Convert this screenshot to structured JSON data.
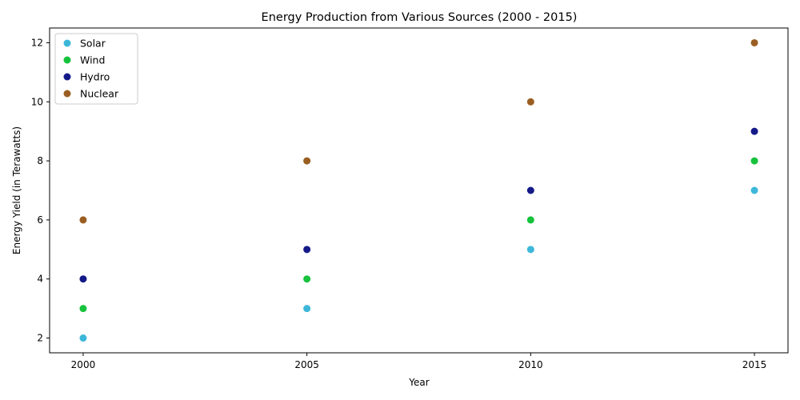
{
  "chart_data": {
    "type": "scatter",
    "title": "Energy Production from Various Sources (2000 - 2015)",
    "xlabel": "Year",
    "ylabel": "Energy Yield (in Terawatts)",
    "x": [
      2000,
      2005,
      2010,
      2015
    ],
    "xticks": [
      "2000",
      "2005",
      "2010",
      "2015"
    ],
    "yticks": [
      "2",
      "4",
      "6",
      "8",
      "10",
      "12"
    ],
    "xlim": [
      1999.25,
      2015.75
    ],
    "ylim": [
      1.5,
      12.5
    ],
    "grid": false,
    "legend_position": "top-left",
    "series": [
      {
        "name": "Solar",
        "color": "#3db7d9",
        "values": [
          2,
          3,
          5,
          7
        ]
      },
      {
        "name": "Wind",
        "color": "#17c23c",
        "values": [
          3,
          4,
          6,
          8
        ]
      },
      {
        "name": "Hydro",
        "color": "#141a88",
        "values": [
          4,
          5,
          7,
          9
        ]
      },
      {
        "name": "Nuclear",
        "color": "#9a5e22",
        "values": [
          6,
          8,
          10,
          12
        ]
      }
    ]
  }
}
